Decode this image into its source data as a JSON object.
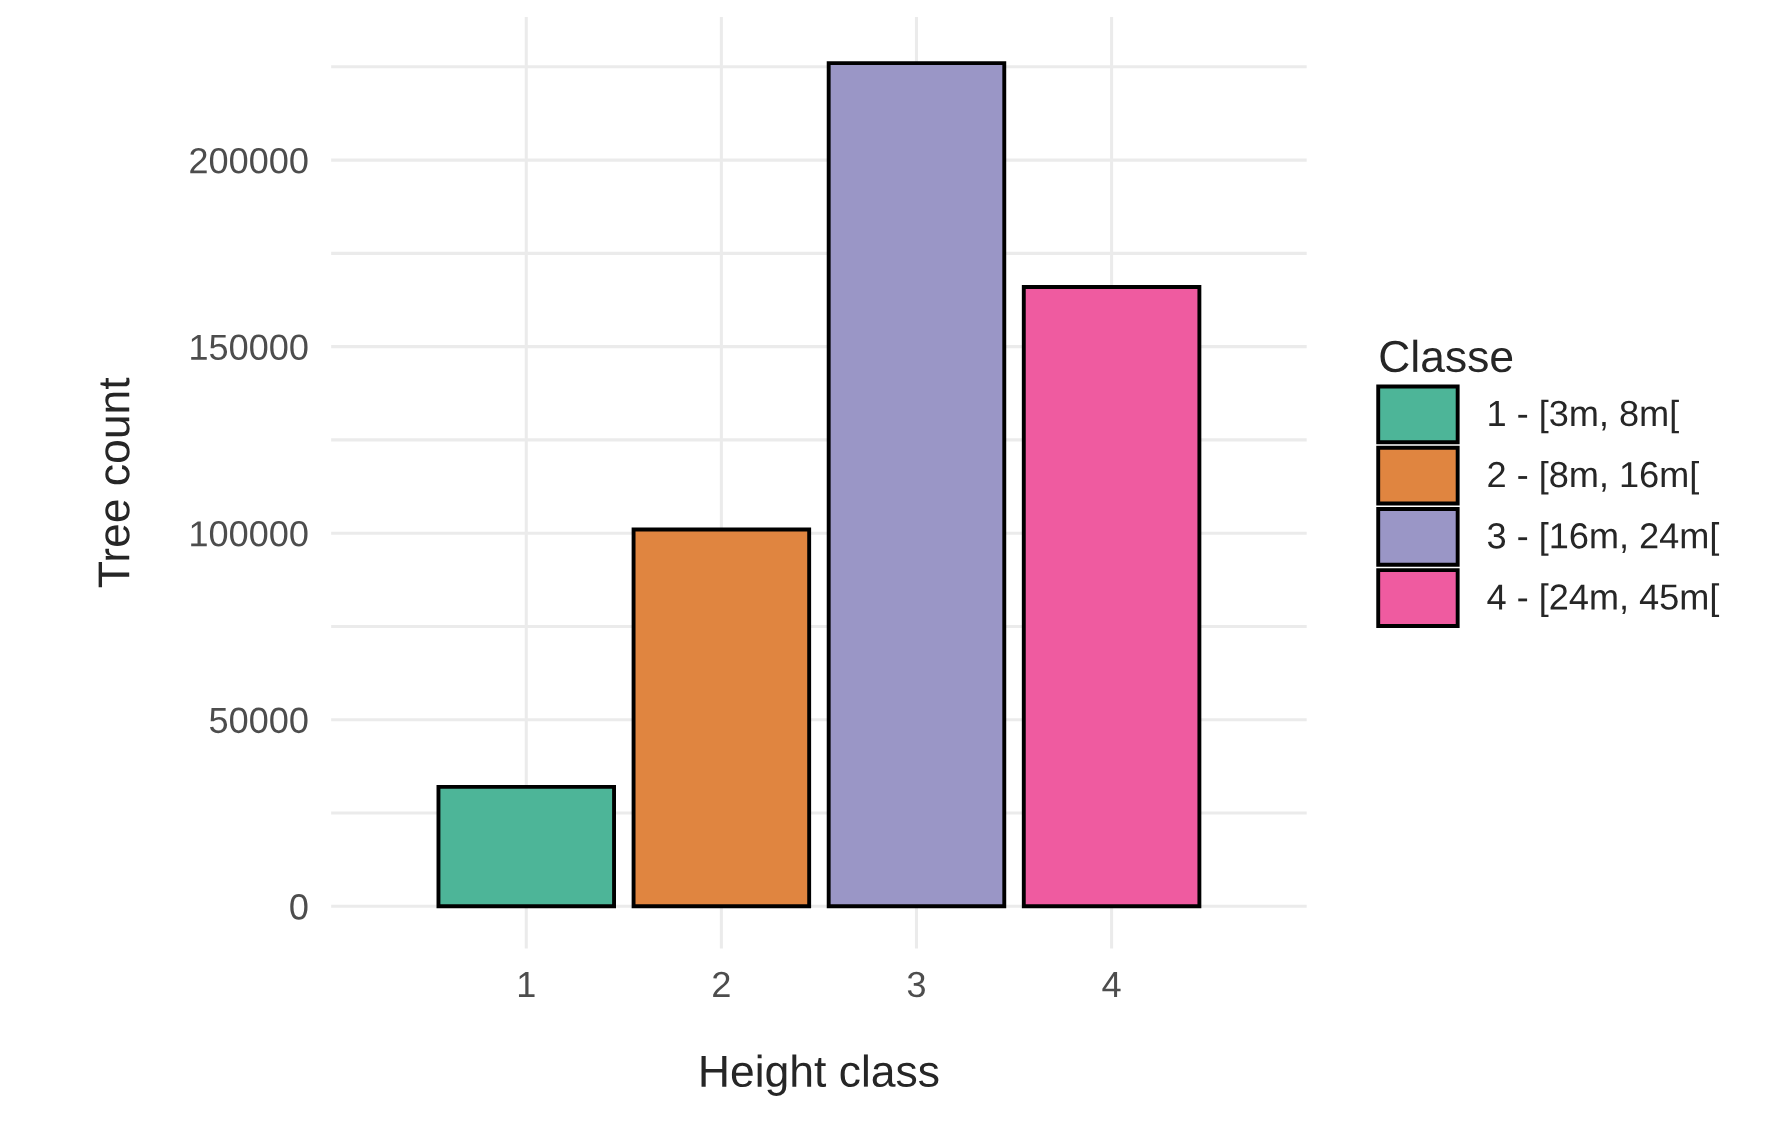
{
  "chart_data": {
    "type": "bar",
    "xlabel": "Height class",
    "ylabel": "Tree count",
    "legend_title": "Classe",
    "categories": [
      "1",
      "2",
      "3",
      "4"
    ],
    "series": [
      {
        "name": "1 - [3m, 8m[",
        "color": "#4db598",
        "values": [
          32000,
          null,
          null,
          null
        ]
      },
      {
        "name": "2 - [8m, 16m[",
        "color": "#e08540",
        "values": [
          null,
          101000,
          null,
          null
        ]
      },
      {
        "name": "3 - [16m, 24m[",
        "color": "#9a96c6",
        "values": [
          null,
          null,
          226000,
          null
        ]
      },
      {
        "name": "4 - [24m, 45m[",
        "color": "#ef5ba0",
        "values": [
          null,
          null,
          null,
          166000
        ]
      }
    ],
    "ylim": [
      -11350,
      238350
    ],
    "yticks": [
      0,
      {
        "value": 25000,
        "label": null
      },
      50000,
      {
        "value": 75000,
        "label": null
      },
      100000,
      {
        "value": 125000,
        "label": null
      },
      150000,
      {
        "value": 175000,
        "label": null
      },
      200000,
      {
        "value": 225000,
        "label": null
      }
    ],
    "grid": true,
    "legend": "right"
  }
}
